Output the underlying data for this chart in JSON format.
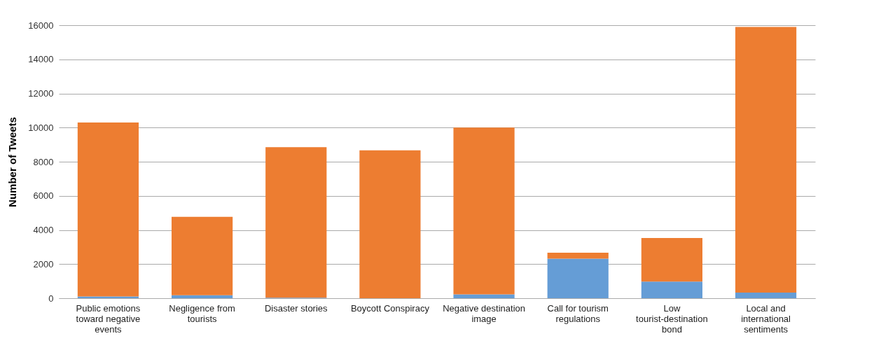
{
  "chart_data": {
    "type": "bar",
    "stacked": true,
    "ylabel": "Number of Tweets",
    "categories": [
      "Public emotions toward negative events",
      "Negligence from tourists",
      "Disaster stories",
      "Boycott Conspiracy",
      "Negative destination image",
      "Call for tourism regulations",
      "Low tourist-destination bond",
      "Local and international sentiments"
    ],
    "series": [
      {
        "color": "#659dd6",
        "values": [
          100,
          170,
          30,
          0,
          230,
          2320,
          970,
          330
        ]
      },
      {
        "color": "#ed7d31",
        "values": [
          10200,
          4600,
          8820,
          8670,
          9770,
          350,
          2560,
          15570
        ]
      }
    ],
    "ylim": [
      0,
      16000
    ],
    "yticks": [
      0,
      2000,
      4000,
      6000,
      8000,
      10000,
      12000,
      14000,
      16000
    ],
    "grid": "y",
    "legend": false
  }
}
